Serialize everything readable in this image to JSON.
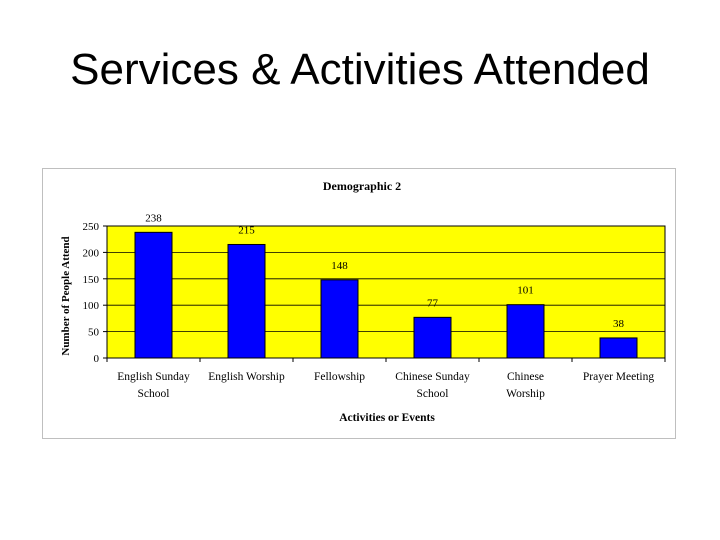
{
  "slide": {
    "title": "Services & Activities Attended"
  },
  "chart_data": {
    "type": "bar",
    "title": "Demographic 2",
    "xlabel": "Activities or Events",
    "ylabel": "Number of People Attend",
    "categories": [
      [
        "English Sunday",
        "School"
      ],
      [
        "English Worship"
      ],
      [
        "Fellowship"
      ],
      [
        "Chinese Sunday",
        "School"
      ],
      [
        "Chinese",
        "Worship"
      ],
      [
        "Prayer Meeting"
      ]
    ],
    "values": [
      238,
      215,
      148,
      77,
      101,
      38
    ],
    "ylim": [
      0,
      250
    ],
    "yticks": [
      0,
      50,
      100,
      150,
      200,
      250
    ],
    "grid": true,
    "legend": "none",
    "colors": {
      "plot_background": "#ffff00",
      "bar": "#0000ff",
      "gridline": "#000000"
    }
  }
}
